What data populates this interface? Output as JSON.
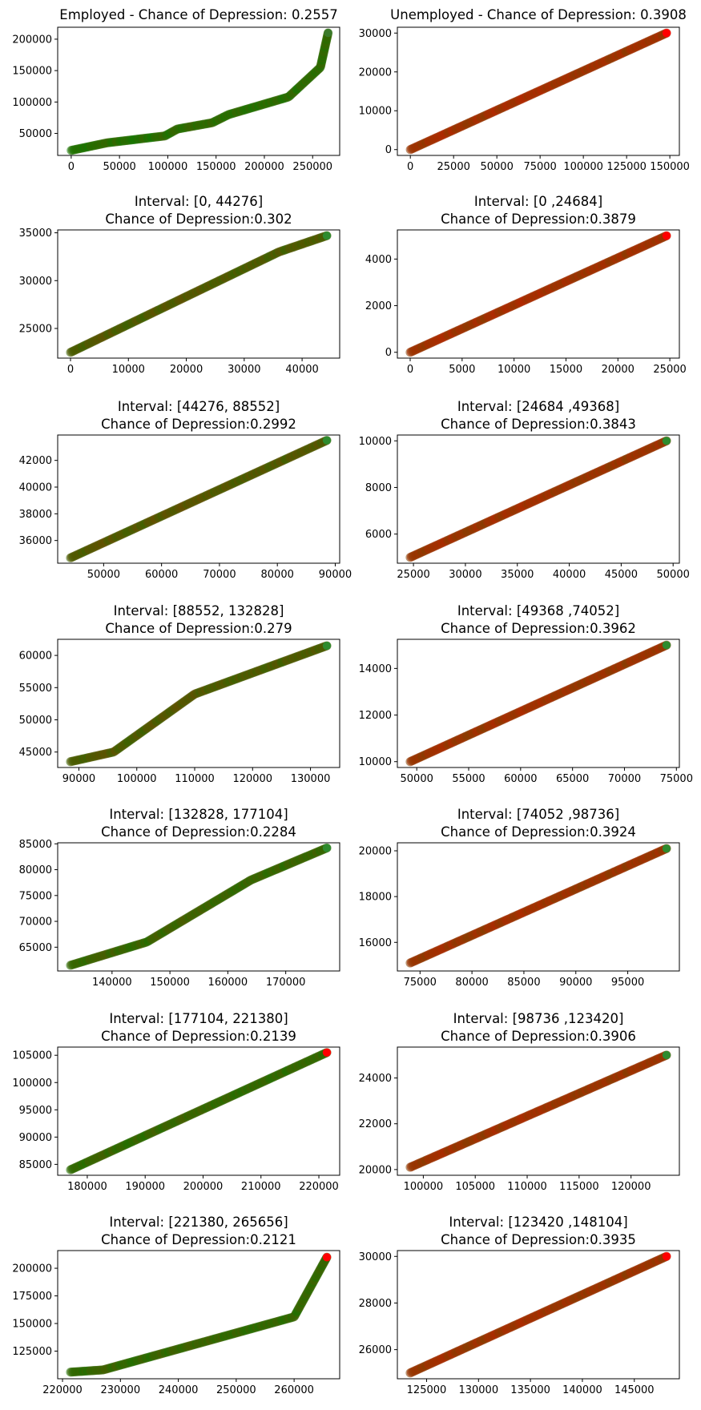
{
  "colors": {
    "red": "#ff0000",
    "green": "#008000",
    "frame": "#000000"
  },
  "chart_data": [
    {
      "type": "scatter",
      "title": [
        "Employed - Chance of Depression: 0.2557"
      ],
      "xlim": [
        -14000,
        278000
      ],
      "ylim": [
        15000,
        219000
      ],
      "xticks": [
        0,
        50000,
        100000,
        150000,
        200000,
        250000
      ],
      "yticks": [
        50000,
        100000,
        150000,
        200000
      ],
      "points": [
        [
          0,
          23000
        ],
        [
          37000,
          35000
        ],
        [
          97000,
          46000
        ],
        [
          110000,
          57000
        ],
        [
          146000,
          67000
        ],
        [
          163000,
          80000
        ],
        [
          225000,
          108000
        ],
        [
          258000,
          155000
        ],
        [
          266000,
          210000
        ]
      ],
      "mix": [
        [
          0,
          0.14
        ],
        [
          0.5,
          0.16
        ],
        [
          1,
          0.18
        ]
      ],
      "end_color": "#3b7a2a"
    },
    {
      "type": "scatter",
      "title": [
        "Unemployed - Chance of Depression: 0.3908"
      ],
      "xlim": [
        -7500,
        155500
      ],
      "ylim": [
        -1500,
        31500
      ],
      "xticks": [
        0,
        25000,
        50000,
        75000,
        100000,
        125000,
        150000
      ],
      "yticks": [
        0,
        10000,
        20000,
        30000
      ],
      "points": [
        [
          0,
          0
        ],
        [
          148104,
          30000
        ]
      ],
      "mix": [
        [
          0,
          0.62
        ],
        [
          1,
          0.62
        ]
      ],
      "end_color": "#ff0000"
    },
    {
      "type": "scatter",
      "title": [
        "Interval: [0, 44276]",
        "Chance of Depression:0.302"
      ],
      "xlim": [
        -2214,
        46490
      ],
      "ylim": [
        21900,
        35300
      ],
      "xticks": [
        0,
        10000,
        20000,
        30000,
        40000
      ],
      "yticks": [
        25000,
        30000,
        35000
      ],
      "points": [
        [
          0,
          22500
        ],
        [
          36000,
          33000
        ],
        [
          44276,
          34700
        ]
      ],
      "mix": [
        [
          0,
          0.3
        ],
        [
          1,
          0.3
        ]
      ],
      "end_color": "#2e8b2e"
    },
    {
      "type": "scatter",
      "title": [
        "Interval: [0 ,24684]",
        "Chance of Depression:0.3879"
      ],
      "xlim": [
        -1234,
        25918
      ],
      "ylim": [
        -250,
        5250
      ],
      "xticks": [
        0,
        5000,
        10000,
        15000,
        20000,
        25000
      ],
      "yticks": [
        0,
        2000,
        4000
      ],
      "points": [
        [
          0,
          0
        ],
        [
          24684,
          5000
        ]
      ],
      "mix": [
        [
          0,
          0.62
        ],
        [
          1,
          0.62
        ]
      ],
      "end_color": "#ff0000"
    },
    {
      "type": "scatter",
      "title": [
        "Interval: [44276, 88552]",
        "Chance of Depression:0.2992"
      ],
      "xlim": [
        42062,
        90766
      ],
      "ylim": [
        34300,
        43900
      ],
      "xticks": [
        50000,
        60000,
        70000,
        80000,
        90000
      ],
      "yticks": [
        36000,
        38000,
        40000,
        42000
      ],
      "points": [
        [
          44276,
          34700
        ],
        [
          88552,
          43500
        ]
      ],
      "mix": [
        [
          0,
          0.32
        ],
        [
          1,
          0.32
        ]
      ],
      "end_color": "#2e8b2e"
    },
    {
      "type": "scatter",
      "title": [
        "Interval: [24684 ,49368]",
        "Chance of Depression:0.3843"
      ],
      "xlim": [
        23450,
        50602
      ],
      "ylim": [
        4750,
        10250
      ],
      "xticks": [
        25000,
        30000,
        35000,
        40000,
        45000,
        50000
      ],
      "yticks": [
        6000,
        8000,
        10000
      ],
      "points": [
        [
          24684,
          5000
        ],
        [
          49368,
          10000
        ]
      ],
      "mix": [
        [
          0,
          0.6
        ],
        [
          1,
          0.6
        ]
      ],
      "end_color": "#2e8b2e"
    },
    {
      "type": "scatter",
      "title": [
        "Interval: [88552, 132828]",
        "Chance of Depression:0.279"
      ],
      "xlim": [
        86338,
        135042
      ],
      "ylim": [
        42600,
        62500
      ],
      "xticks": [
        90000,
        100000,
        110000,
        120000,
        130000
      ],
      "yticks": [
        45000,
        50000,
        55000,
        60000
      ],
      "points": [
        [
          88552,
          43500
        ],
        [
          96000,
          45000
        ],
        [
          110000,
          54000
        ],
        [
          132828,
          61500
        ]
      ],
      "mix": [
        [
          0,
          0.3
        ],
        [
          1,
          0.3
        ]
      ],
      "end_color": "#2e8b2e"
    },
    {
      "type": "scatter",
      "title": [
        "Interval: [49368 ,74052]",
        "Chance of Depression:0.3962"
      ],
      "xlim": [
        48134,
        75286
      ],
      "ylim": [
        9750,
        15250
      ],
      "xticks": [
        50000,
        55000,
        60000,
        65000,
        70000,
        75000
      ],
      "yticks": [
        10000,
        12000,
        14000
      ],
      "points": [
        [
          49368,
          10000
        ],
        [
          74052,
          15000
        ]
      ],
      "mix": [
        [
          0,
          0.6
        ],
        [
          1,
          0.6
        ]
      ],
      "end_color": "#2e8b2e"
    },
    {
      "type": "scatter",
      "title": [
        "Interval: [132828, 177104]",
        "Chance of Depression:0.2284"
      ],
      "xlim": [
        130614,
        179318
      ],
      "ylim": [
        60400,
        85200
      ],
      "xticks": [
        140000,
        150000,
        160000,
        170000
      ],
      "yticks": [
        65000,
        70000,
        75000,
        80000,
        85000
      ],
      "points": [
        [
          132828,
          61500
        ],
        [
          146000,
          66000
        ],
        [
          164000,
          78000
        ],
        [
          177104,
          84200
        ]
      ],
      "mix": [
        [
          0,
          0.22
        ],
        [
          1,
          0.22
        ]
      ],
      "end_color": "#2e8b2e"
    },
    {
      "type": "scatter",
      "title": [
        "Interval: [74052 ,98736]",
        "Chance of Depression:0.3924"
      ],
      "xlim": [
        72818,
        99970
      ],
      "ylim": [
        14750,
        20350
      ],
      "xticks": [
        75000,
        80000,
        85000,
        90000,
        95000
      ],
      "yticks": [
        16000,
        18000,
        20000
      ],
      "points": [
        [
          74052,
          15100
        ],
        [
          98736,
          20100
        ]
      ],
      "mix": [
        [
          0,
          0.6
        ],
        [
          1,
          0.6
        ]
      ],
      "end_color": "#2e8b2e"
    },
    {
      "type": "scatter",
      "title": [
        "Interval: [177104, 221380]",
        "Chance of Depression:0.2139"
      ],
      "xlim": [
        174890,
        223594
      ],
      "ylim": [
        83000,
        106500
      ],
      "xticks": [
        180000,
        190000,
        200000,
        210000,
        220000
      ],
      "yticks": [
        85000,
        90000,
        95000,
        100000,
        105000
      ],
      "points": [
        [
          177104,
          84000
        ],
        [
          221380,
          105500
        ]
      ],
      "mix": [
        [
          0,
          0.2
        ],
        [
          1,
          0.2
        ]
      ],
      "end_color": "#ff0000"
    },
    {
      "type": "scatter",
      "title": [
        "Interval: [98736 ,123420]",
        "Chance of Depression:0.3906"
      ],
      "xlim": [
        97502,
        124654
      ],
      "ylim": [
        19750,
        25350
      ],
      "xticks": [
        100000,
        105000,
        110000,
        115000,
        120000
      ],
      "yticks": [
        20000,
        22000,
        24000
      ],
      "points": [
        [
          98736,
          20100
        ],
        [
          123420,
          25000
        ]
      ],
      "mix": [
        [
          0,
          0.6
        ],
        [
          1,
          0.6
        ]
      ],
      "end_color": "#2e8b2e"
    },
    {
      "type": "scatter",
      "title": [
        "Interval: [221380, 265656]",
        "Chance of Depression:0.2121"
      ],
      "xlim": [
        219166,
        267870
      ],
      "ylim": [
        100000,
        216000
      ],
      "xticks": [
        220000,
        230000,
        240000,
        250000,
        260000
      ],
      "yticks": [
        125000,
        150000,
        175000,
        200000
      ],
      "points": [
        [
          221380,
          106000
        ],
        [
          227000,
          108000
        ],
        [
          260000,
          156000
        ],
        [
          265656,
          210000
        ]
      ],
      "mix": [
        [
          0,
          0.2
        ],
        [
          1,
          0.2
        ]
      ],
      "end_color": "#ff0000"
    },
    {
      "type": "scatter",
      "title": [
        "Interval: [123420 ,148104]",
        "Chance of Depression:0.3935"
      ],
      "xlim": [
        122186,
        149338
      ],
      "ylim": [
        24750,
        30250
      ],
      "xticks": [
        125000,
        130000,
        135000,
        140000,
        145000
      ],
      "yticks": [
        26000,
        28000,
        30000
      ],
      "points": [
        [
          123420,
          25000
        ],
        [
          148104,
          30000
        ]
      ],
      "mix": [
        [
          0,
          0.6
        ],
        [
          1,
          0.6
        ]
      ],
      "end_color": "#ff0000"
    }
  ]
}
